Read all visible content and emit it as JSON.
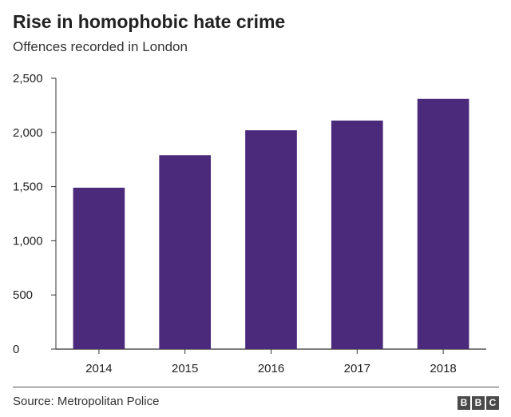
{
  "header": {
    "title": "Rise in homophobic hate crime",
    "subtitle": "Offences recorded in London"
  },
  "footer": {
    "source": "Source: Metropolitan Police",
    "logo_letters": [
      "B",
      "B",
      "C"
    ]
  },
  "colors": {
    "bar": "#4b2a7b",
    "axis": "#333333",
    "text": "#222222"
  },
  "chart_data": {
    "type": "bar",
    "title": "Rise in homophobic hate crime",
    "subtitle": "Offences recorded in London",
    "categories": [
      "2014",
      "2015",
      "2016",
      "2017",
      "2018"
    ],
    "values": [
      1490,
      1790,
      2020,
      2110,
      2310
    ],
    "ylim": [
      0,
      2500
    ],
    "yticks": [
      0,
      500,
      1000,
      1500,
      2000,
      2500
    ],
    "ytick_labels": [
      "0",
      "500",
      "1,000",
      "1,500",
      "2,000",
      "2,500"
    ],
    "xlabel": "",
    "ylabel": "",
    "grid": false,
    "legend": "none"
  }
}
